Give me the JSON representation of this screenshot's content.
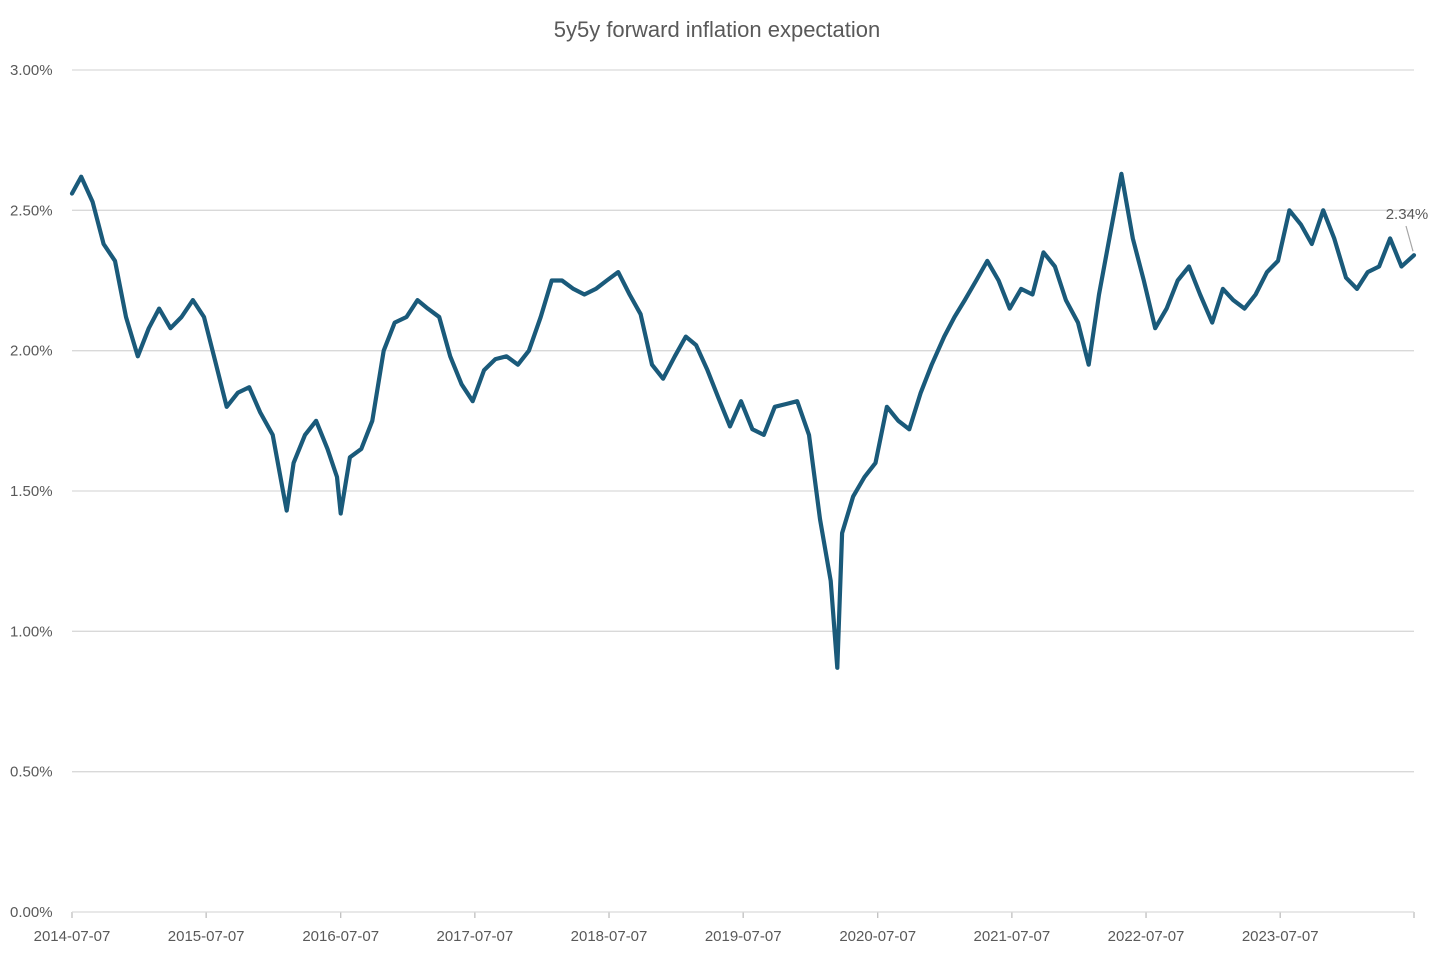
{
  "chart_data": {
    "type": "line",
    "title": "5y5y forward inflation expectation",
    "xlabel": "",
    "ylabel": "",
    "ylim": [
      0,
      0.03
    ],
    "yticks": [
      "0.00%",
      "0.50%",
      "1.00%",
      "1.50%",
      "2.00%",
      "2.50%",
      "3.00%"
    ],
    "yticks_values": [
      0,
      0.005,
      0.01,
      0.015,
      0.02,
      0.025,
      0.03
    ],
    "xlim": [
      "2014-07-07",
      "2024-07-05"
    ],
    "xticks": [
      "2014-07-07",
      "2015-07-07",
      "2016-07-07",
      "2017-07-07",
      "2018-07-07",
      "2019-07-07",
      "2020-07-07",
      "2021-07-07",
      "2022-07-07",
      "2023-07-07"
    ],
    "grid": "horizontal",
    "legend": "none",
    "color": "#1a5a7a",
    "last_value_label": "2.34%",
    "series": [
      {
        "x": [
          "2014-07-07",
          "2014-08-01",
          "2014-09-01",
          "2014-10-01",
          "2014-11-01",
          "2014-12-01",
          "2015-01-02",
          "2015-02-01",
          "2015-03-01",
          "2015-04-01",
          "2015-05-01",
          "2015-06-01",
          "2015-07-01",
          "2015-08-01",
          "2015-09-01",
          "2015-10-01",
          "2015-11-01",
          "2015-12-01",
          "2016-01-04",
          "2016-02-01",
          "2016-02-11",
          "2016-03-01",
          "2016-04-01",
          "2016-05-01",
          "2016-06-01",
          "2016-06-27",
          "2016-07-07",
          "2016-08-01",
          "2016-09-01",
          "2016-10-01",
          "2016-11-01",
          "2016-12-01",
          "2017-01-02",
          "2017-02-01",
          "2017-03-01",
          "2017-04-01",
          "2017-05-01",
          "2017-06-01",
          "2017-07-01",
          "2017-08-01",
          "2017-09-01",
          "2017-10-01",
          "2017-11-01",
          "2017-12-01",
          "2018-01-02",
          "2018-02-01",
          "2018-03-01",
          "2018-04-01",
          "2018-05-01",
          "2018-06-01",
          "2018-07-01",
          "2018-08-01",
          "2018-09-01",
          "2018-10-01",
          "2018-11-01",
          "2018-12-01",
          "2019-01-02",
          "2019-02-01",
          "2019-03-01",
          "2019-04-01",
          "2019-05-01",
          "2019-06-01",
          "2019-07-01",
          "2019-08-01",
          "2019-09-01",
          "2019-10-01",
          "2019-11-01",
          "2019-12-01",
          "2020-01-02",
          "2020-02-01",
          "2020-03-01",
          "2020-03-19",
          "2020-04-01",
          "2020-05-01",
          "2020-06-01",
          "2020-07-01",
          "2020-08-01",
          "2020-09-01",
          "2020-10-01",
          "2020-11-01",
          "2020-12-01",
          "2021-01-04",
          "2021-02-01",
          "2021-03-01",
          "2021-04-01",
          "2021-05-01",
          "2021-06-01",
          "2021-07-01",
          "2021-08-01",
          "2021-09-01",
          "2021-10-01",
          "2021-11-01",
          "2021-12-01",
          "2022-01-03",
          "2022-02-01",
          "2022-03-01",
          "2022-04-01",
          "2022-05-01",
          "2022-06-01",
          "2022-07-01",
          "2022-08-01",
          "2022-09-01",
          "2022-10-01",
          "2022-11-01",
          "2022-12-01",
          "2023-01-03",
          "2023-02-01",
          "2023-03-01",
          "2023-04-01",
          "2023-05-01",
          "2023-06-01",
          "2023-07-01",
          "2023-08-01",
          "2023-09-01",
          "2023-10-01",
          "2023-11-01",
          "2023-12-01",
          "2024-01-02",
          "2024-02-01",
          "2024-03-01",
          "2024-04-01",
          "2024-05-01",
          "2024-06-01",
          "2024-07-05"
        ],
        "values": [
          0.0256,
          0.0262,
          0.0253,
          0.0238,
          0.0232,
          0.0212,
          0.0198,
          0.0208,
          0.0215,
          0.0208,
          0.0212,
          0.0218,
          0.0212,
          0.0196,
          0.018,
          0.0185,
          0.0187,
          0.0178,
          0.017,
          0.015,
          0.0143,
          0.016,
          0.017,
          0.0175,
          0.0165,
          0.0155,
          0.0142,
          0.0162,
          0.0165,
          0.0175,
          0.02,
          0.021,
          0.0212,
          0.0218,
          0.0215,
          0.0212,
          0.0198,
          0.0188,
          0.0182,
          0.0193,
          0.0197,
          0.0198,
          0.0195,
          0.02,
          0.0212,
          0.0225,
          0.0225,
          0.0222,
          0.022,
          0.0222,
          0.0225,
          0.0228,
          0.022,
          0.0213,
          0.0195,
          0.019,
          0.0198,
          0.0205,
          0.0202,
          0.0193,
          0.0183,
          0.0173,
          0.0182,
          0.0172,
          0.017,
          0.018,
          0.0181,
          0.0182,
          0.017,
          0.014,
          0.0118,
          0.0087,
          0.0135,
          0.0148,
          0.0155,
          0.016,
          0.018,
          0.0175,
          0.0172,
          0.0185,
          0.0195,
          0.0205,
          0.0212,
          0.0218,
          0.0225,
          0.0232,
          0.0225,
          0.0215,
          0.0222,
          0.022,
          0.0235,
          0.023,
          0.0218,
          0.021,
          0.0195,
          0.022,
          0.0242,
          0.0263,
          0.024,
          0.0225,
          0.0208,
          0.0215,
          0.0225,
          0.023,
          0.022,
          0.021,
          0.0222,
          0.0218,
          0.0215,
          0.022,
          0.0228,
          0.0232,
          0.025,
          0.0245,
          0.0238,
          0.025,
          0.024,
          0.0226,
          0.0222,
          0.0228,
          0.023,
          0.024,
          0.023,
          0.0234
        ]
      }
    ]
  }
}
